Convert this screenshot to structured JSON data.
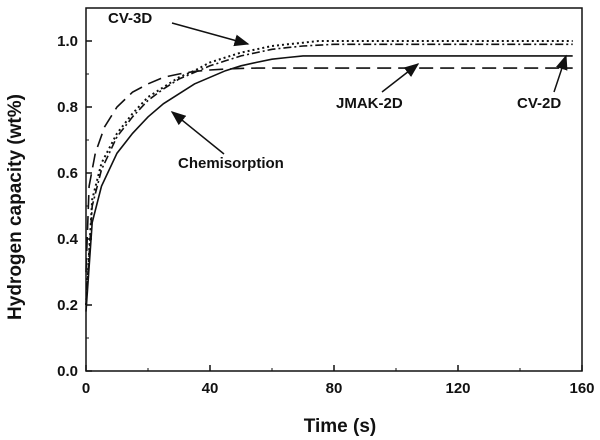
{
  "chart_data": {
    "type": "line",
    "title": "",
    "xlabel": "Time (s)",
    "ylabel": "Hydrogen capacity (wt%)",
    "xlim": [
      0,
      160
    ],
    "ylim": [
      0.0,
      1.1
    ],
    "xticks": [
      0,
      40,
      80,
      120,
      160
    ],
    "xtick_labels": [
      "0",
      "40",
      "80",
      "120",
      "160"
    ],
    "yticks": [
      0.0,
      0.2,
      0.4,
      0.6,
      0.8,
      1.0
    ],
    "ytick_labels": [
      "0.0",
      "0.2",
      "0.4",
      "0.6",
      "0.8",
      "1.0"
    ],
    "grid": false,
    "legend": "none",
    "series": [
      {
        "name": "CV-3D",
        "style": "dotted",
        "x": [
          0,
          2,
          5,
          10,
          15,
          20,
          25,
          30,
          35,
          40,
          45,
          50,
          55,
          60,
          65,
          70,
          75,
          80,
          100,
          120,
          140,
          157
        ],
        "y": [
          0.2,
          0.52,
          0.63,
          0.72,
          0.78,
          0.83,
          0.86,
          0.89,
          0.91,
          0.935,
          0.95,
          0.965,
          0.975,
          0.985,
          0.99,
          0.995,
          1.0,
          1.0,
          1.0,
          1.0,
          1.0,
          1.0
        ]
      },
      {
        "name": "CV-2D",
        "style": "solid",
        "x": [
          0,
          2,
          5,
          10,
          15,
          20,
          25,
          30,
          35,
          40,
          45,
          50,
          55,
          60,
          65,
          70,
          80,
          100,
          120,
          140,
          157
        ],
        "y": [
          0.18,
          0.45,
          0.56,
          0.66,
          0.72,
          0.77,
          0.81,
          0.84,
          0.87,
          0.89,
          0.91,
          0.925,
          0.935,
          0.945,
          0.95,
          0.955,
          0.955,
          0.955,
          0.955,
          0.955,
          0.955
        ]
      },
      {
        "name": "JMAK-2D",
        "style": "dashed",
        "x": [
          0,
          1,
          3,
          6,
          10,
          15,
          20,
          25,
          30,
          35,
          40,
          45,
          50,
          55,
          60,
          80,
          100,
          120,
          140,
          157
        ],
        "y": [
          0.3,
          0.56,
          0.66,
          0.74,
          0.8,
          0.845,
          0.87,
          0.89,
          0.9,
          0.908,
          0.912,
          0.915,
          0.917,
          0.918,
          0.918,
          0.918,
          0.918,
          0.918,
          0.918,
          0.918
        ]
      },
      {
        "name": "Chemisorption",
        "style": "dash-dot",
        "x": [
          0,
          2,
          5,
          10,
          15,
          20,
          25,
          30,
          35,
          40,
          45,
          50,
          55,
          60,
          65,
          70,
          80,
          100,
          120,
          140,
          157
        ],
        "y": [
          0.2,
          0.5,
          0.61,
          0.71,
          0.77,
          0.82,
          0.855,
          0.885,
          0.905,
          0.925,
          0.94,
          0.955,
          0.965,
          0.975,
          0.98,
          0.985,
          0.99,
          0.99,
          0.99,
          0.99,
          0.99
        ]
      }
    ],
    "annotations": [
      {
        "text": "CV-3D",
        "target_series": "CV-3D"
      },
      {
        "text": "JMAK-2D",
        "target_series": "JMAK-2D"
      },
      {
        "text": "CV-2D",
        "target_series": "CV-2D"
      },
      {
        "text": "Chemisorption",
        "target_series": "CV-2D"
      }
    ]
  }
}
